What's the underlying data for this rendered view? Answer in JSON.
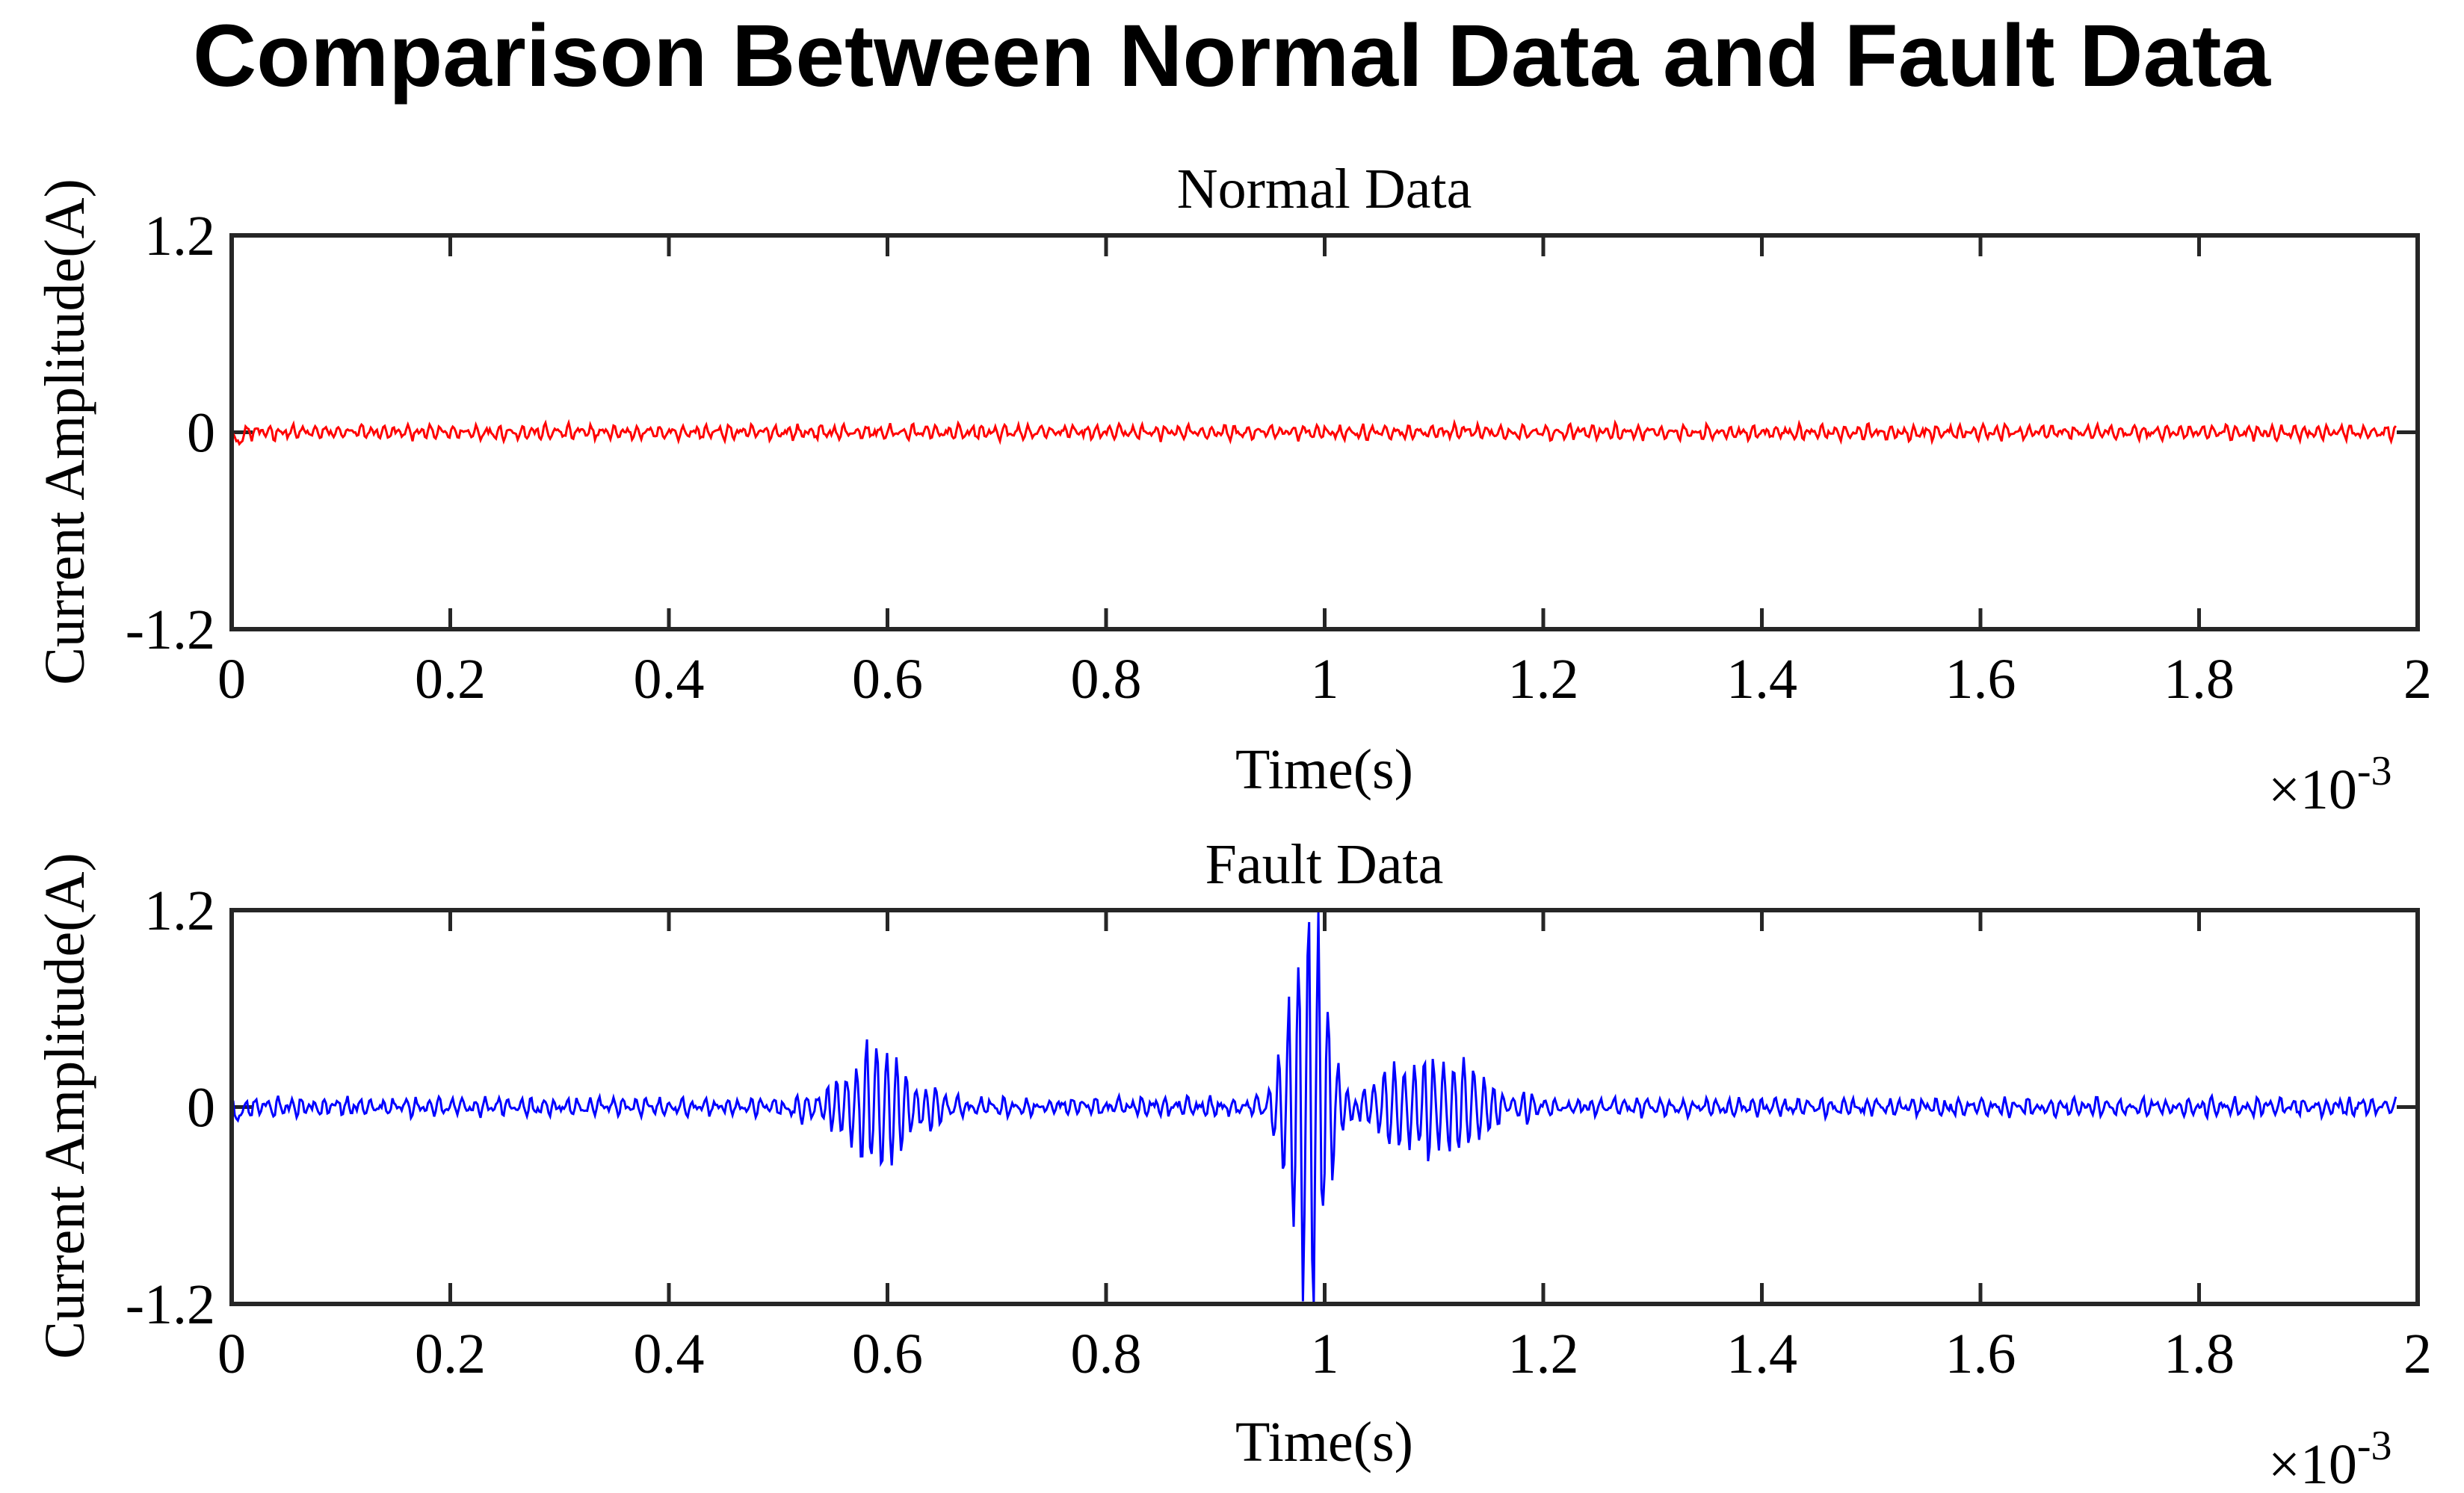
{
  "chart_data": {
    "title": "Comparison Between Normal Data and Fault Data",
    "type": "line",
    "charts": [
      {
        "id": "normal",
        "title": "Normal Data",
        "xlabel": "Time(s)",
        "ylabel": "Current Amplitude(A)",
        "x_exponent_label": "×10",
        "x_exponent_power": "-3",
        "xlim": [
          0,
          2
        ],
        "ylim": [
          -1.2,
          1.2
        ],
        "xticks": [
          0,
          0.2,
          0.4,
          0.6,
          0.8,
          1,
          1.2,
          1.4,
          1.6,
          1.8,
          2
        ],
        "xtick_labels": [
          "0",
          "0.2",
          "0.4",
          "0.6",
          "0.8",
          "1",
          "1.2",
          "1.4",
          "1.6",
          "1.8",
          "2"
        ],
        "yticks": [
          -1.2,
          0,
          1.2
        ],
        "ytick_labels": [
          "-1.2",
          "0",
          "1.2"
        ],
        "series": [
          {
            "name": "Normal Data",
            "color": "#ff0000",
            "x_range": [
              0,
              1.98
            ],
            "noise_amplitude": 0.04,
            "bursts": []
          }
        ]
      },
      {
        "id": "fault",
        "title": "Fault Data",
        "xlabel": "Time(s)",
        "ylabel": "Current Amplitude(A)",
        "x_exponent_label": "×10",
        "x_exponent_power": "-3",
        "xlim": [
          0,
          2
        ],
        "ylim": [
          -1.2,
          1.2
        ],
        "xticks": [
          0,
          0.2,
          0.4,
          0.6,
          0.8,
          1,
          1.2,
          1.4,
          1.6,
          1.8,
          2
        ],
        "xtick_labels": [
          "0",
          "0.2",
          "0.4",
          "0.6",
          "0.8",
          "1",
          "1.2",
          "1.4",
          "1.6",
          "1.8",
          "2"
        ],
        "yticks": [
          -1.2,
          0,
          1.2
        ],
        "ytick_labels": [
          "-1.2",
          "0",
          "1.2"
        ],
        "series": [
          {
            "name": "Fault Data",
            "color": "#0000ff",
            "x_range": [
              0,
              1.98
            ],
            "noise_amplitude": 0.05,
            "bursts": [
              {
                "center": 0.59,
                "width": 0.045,
                "amplitude": 0.32
              },
              {
                "center": 0.985,
                "width": 0.022,
                "amplitude": 1.15
              },
              {
                "center": 1.1,
                "width": 0.06,
                "amplitude": 0.3
              }
            ]
          }
        ]
      }
    ]
  }
}
